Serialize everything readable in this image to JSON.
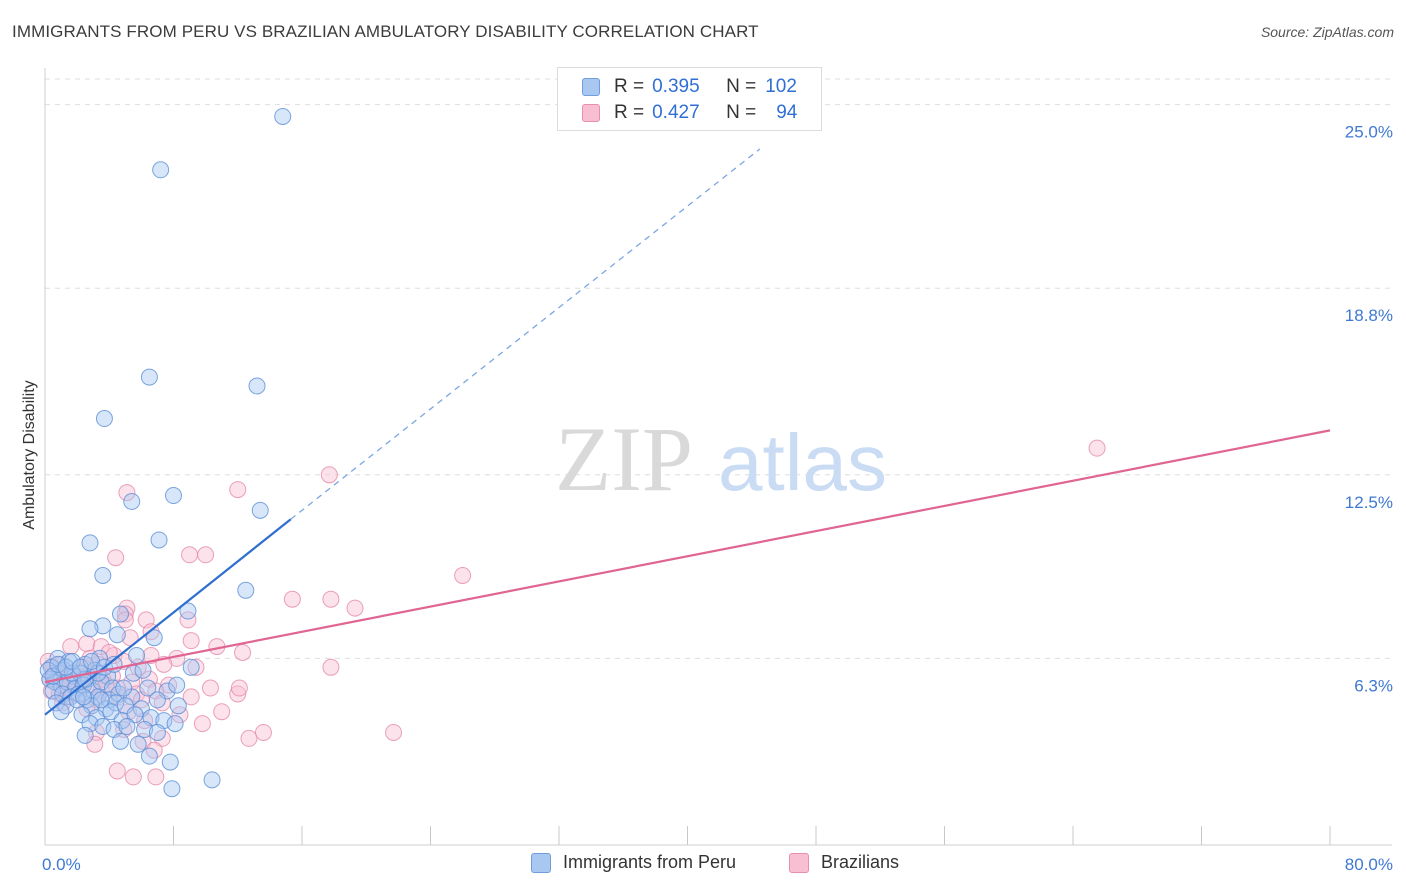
{
  "title": "IMMIGRANTS FROM PERU VS BRAZILIAN AMBULATORY DISABILITY CORRELATION CHART",
  "source": "Source: ZipAtlas.com",
  "watermark": {
    "zip": "ZIP",
    "atlas": "atlas"
  },
  "legend": {
    "r_label": "R =",
    "n_label": "N =",
    "rows": [
      {
        "name": "Immigrants from Peru",
        "r": "0.395",
        "n": "102"
      },
      {
        "name": "Brazilians",
        "r": "0.427",
        "n": "94"
      }
    ]
  },
  "chart_data": {
    "type": "scatter",
    "title": "IMMIGRANTS FROM PERU VS BRAZILIAN AMBULATORY DISABILITY CORRELATION CHART",
    "xlabel": "",
    "ylabel": "Ambulatory Disability",
    "xlim": [
      0,
      80
    ],
    "ylim": [
      0,
      26
    ],
    "x_tick_labels": [
      {
        "value": 0,
        "label": "0.0%"
      },
      {
        "value": 80,
        "label": "80.0%"
      }
    ],
    "x_minor_ticks": [
      8,
      16,
      24,
      32,
      40,
      48,
      56,
      64,
      72,
      80
    ],
    "y_ticks": [
      {
        "value": 6.3,
        "label": "6.3%"
      },
      {
        "value": 12.5,
        "label": "12.5%"
      },
      {
        "value": 18.8,
        "label": "18.8%"
      },
      {
        "value": 25.0,
        "label": "25.0%"
      }
    ],
    "grid": true,
    "colors": {
      "blue_fill": "#a9c8f1",
      "blue_edge": "#5b8fd6",
      "blue_line": "#2e6fd0",
      "pink_fill": "#f8bfd2",
      "pink_edge": "#e58aab",
      "pink_line": "#e06592",
      "tick_label": "#3f79d3"
    },
    "series": [
      {
        "name": "Immigrants from Peru",
        "trend": {
          "x0": 0,
          "y0": 4.4,
          "x1": 15.3,
          "y1": 11.0,
          "dash_to_x": 44.5,
          "dash_to_y": 23.5
        },
        "points": [
          [
            14.8,
            24.6
          ],
          [
            7.2,
            22.8
          ],
          [
            6.5,
            15.8
          ],
          [
            13.2,
            15.5
          ],
          [
            3.7,
            14.4
          ],
          [
            5.4,
            11.6
          ],
          [
            8.0,
            11.8
          ],
          [
            13.4,
            11.3
          ],
          [
            2.8,
            10.2
          ],
          [
            7.1,
            10.3
          ],
          [
            3.6,
            9.1
          ],
          [
            12.5,
            8.6
          ],
          [
            8.9,
            7.9
          ],
          [
            4.7,
            7.8
          ],
          [
            3.6,
            7.4
          ],
          [
            2.8,
            7.3
          ],
          [
            6.8,
            7.0
          ],
          [
            4.5,
            7.1
          ],
          [
            9.1,
            6.0
          ],
          [
            5.7,
            6.4
          ],
          [
            0.8,
            6.3
          ],
          [
            1.5,
            6.2
          ],
          [
            2.5,
            6.1
          ],
          [
            3.4,
            6.3
          ],
          [
            0.4,
            6.0
          ],
          [
            0.9,
            5.8
          ],
          [
            1.2,
            5.9
          ],
          [
            1.8,
            5.7
          ],
          [
            2.2,
            5.8
          ],
          [
            2.7,
            5.6
          ],
          [
            3.1,
            5.9
          ],
          [
            3.9,
            5.7
          ],
          [
            0.3,
            5.6
          ],
          [
            0.6,
            5.5
          ],
          [
            1.0,
            5.4
          ],
          [
            1.4,
            5.5
          ],
          [
            1.9,
            5.3
          ],
          [
            2.4,
            5.4
          ],
          [
            3.0,
            5.2
          ],
          [
            3.5,
            5.5
          ],
          [
            4.2,
            5.3
          ],
          [
            0.5,
            5.2
          ],
          [
            1.1,
            5.1
          ],
          [
            1.6,
            5.0
          ],
          [
            2.1,
            5.1
          ],
          [
            2.6,
            4.9
          ],
          [
            3.3,
            5.0
          ],
          [
            4.0,
            4.9
          ],
          [
            4.6,
            5.1
          ],
          [
            5.4,
            5.0
          ],
          [
            6.4,
            5.3
          ],
          [
            7.6,
            5.2
          ],
          [
            8.2,
            5.4
          ],
          [
            0.7,
            4.8
          ],
          [
            1.3,
            4.7
          ],
          [
            2.0,
            4.9
          ],
          [
            2.9,
            4.7
          ],
          [
            3.8,
            4.6
          ],
          [
            4.4,
            4.8
          ],
          [
            5.0,
            4.7
          ],
          [
            6.0,
            4.6
          ],
          [
            7.0,
            4.9
          ],
          [
            8.3,
            4.7
          ],
          [
            1.0,
            4.5
          ],
          [
            2.3,
            4.4
          ],
          [
            3.2,
            4.3
          ],
          [
            4.1,
            4.5
          ],
          [
            4.8,
            4.2
          ],
          [
            5.6,
            4.4
          ],
          [
            6.6,
            4.3
          ],
          [
            7.4,
            4.2
          ],
          [
            8.1,
            4.1
          ],
          [
            2.8,
            4.1
          ],
          [
            3.6,
            4.0
          ],
          [
            4.3,
            3.9
          ],
          [
            5.1,
            4.0
          ],
          [
            6.2,
            3.9
          ],
          [
            7.0,
            3.8
          ],
          [
            2.5,
            3.7
          ],
          [
            4.7,
            3.5
          ],
          [
            5.8,
            3.4
          ],
          [
            6.5,
            3.0
          ],
          [
            7.8,
            2.8
          ],
          [
            10.4,
            2.2
          ],
          [
            7.9,
            1.9
          ],
          [
            1.7,
            5.8
          ],
          [
            2.5,
            5.6
          ],
          [
            3.3,
            5.8
          ],
          [
            0.2,
            5.9
          ],
          [
            0.5,
            5.7
          ],
          [
            0.8,
            6.1
          ],
          [
            1.3,
            6.0
          ],
          [
            1.7,
            6.2
          ],
          [
            2.2,
            6.0
          ],
          [
            2.9,
            6.2
          ],
          [
            3.7,
            6.0
          ],
          [
            4.3,
            6.1
          ],
          [
            5.5,
            5.8
          ],
          [
            6.1,
            5.9
          ],
          [
            2.4,
            5.0
          ],
          [
            3.5,
            4.9
          ],
          [
            4.9,
            5.3
          ]
        ]
      },
      {
        "name": "Brazilians",
        "trend": {
          "x0": 0,
          "y0": 5.5,
          "x1": 80,
          "y1": 14.0
        },
        "points": [
          [
            65.5,
            13.4
          ],
          [
            17.7,
            12.5
          ],
          [
            12.0,
            12.0
          ],
          [
            5.1,
            11.9
          ],
          [
            9.0,
            9.8
          ],
          [
            10.0,
            9.8
          ],
          [
            4.4,
            9.7
          ],
          [
            26.0,
            9.1
          ],
          [
            15.4,
            8.3
          ],
          [
            17.8,
            8.3
          ],
          [
            19.3,
            8.0
          ],
          [
            5.1,
            8.0
          ],
          [
            5.0,
            7.8
          ],
          [
            5.0,
            7.6
          ],
          [
            6.3,
            7.6
          ],
          [
            8.9,
            7.6
          ],
          [
            6.6,
            7.2
          ],
          [
            5.3,
            7.0
          ],
          [
            9.1,
            6.9
          ],
          [
            10.7,
            6.7
          ],
          [
            12.3,
            6.5
          ],
          [
            4.3,
            6.4
          ],
          [
            6.6,
            6.4
          ],
          [
            8.2,
            6.3
          ],
          [
            2.6,
            6.8
          ],
          [
            3.5,
            6.7
          ],
          [
            4.0,
            6.5
          ],
          [
            1.6,
            6.7
          ],
          [
            2.8,
            6.3
          ],
          [
            3.3,
            6.1
          ],
          [
            4.9,
            6.2
          ],
          [
            5.8,
            6.0
          ],
          [
            7.4,
            6.1
          ],
          [
            9.4,
            6.0
          ],
          [
            17.8,
            6.0
          ],
          [
            0.5,
            6.0
          ],
          [
            1.0,
            5.9
          ],
          [
            1.5,
            5.8
          ],
          [
            2.0,
            5.9
          ],
          [
            2.5,
            5.7
          ],
          [
            3.0,
            5.8
          ],
          [
            3.6,
            5.6
          ],
          [
            4.2,
            5.7
          ],
          [
            5.4,
            5.5
          ],
          [
            6.5,
            5.6
          ],
          [
            7.7,
            5.4
          ],
          [
            0.3,
            5.6
          ],
          [
            0.7,
            5.5
          ],
          [
            1.2,
            5.4
          ],
          [
            1.8,
            5.5
          ],
          [
            2.3,
            5.3
          ],
          [
            2.9,
            5.4
          ],
          [
            3.5,
            5.2
          ],
          [
            4.5,
            5.3
          ],
          [
            5.7,
            5.1
          ],
          [
            6.9,
            5.2
          ],
          [
            10.3,
            5.3
          ],
          [
            12.0,
            5.1
          ],
          [
            12.1,
            5.3
          ],
          [
            0.4,
            5.2
          ],
          [
            0.9,
            5.1
          ],
          [
            1.4,
            5.0
          ],
          [
            2.1,
            5.1
          ],
          [
            3.2,
            4.9
          ],
          [
            4.6,
            5.0
          ],
          [
            6.0,
            4.9
          ],
          [
            7.3,
            4.8
          ],
          [
            9.1,
            5.0
          ],
          [
            1.1,
            4.8
          ],
          [
            2.6,
            4.6
          ],
          [
            5.2,
            4.5
          ],
          [
            8.4,
            4.4
          ],
          [
            11.0,
            4.5
          ],
          [
            6.2,
            4.2
          ],
          [
            9.8,
            4.1
          ],
          [
            3.2,
            3.8
          ],
          [
            4.9,
            3.9
          ],
          [
            13.6,
            3.8
          ],
          [
            21.7,
            3.8
          ],
          [
            12.7,
            3.6
          ],
          [
            3.1,
            3.4
          ],
          [
            6.1,
            3.5
          ],
          [
            7.3,
            3.6
          ],
          [
            6.8,
            3.2
          ],
          [
            4.5,
            2.5
          ],
          [
            6.9,
            2.3
          ],
          [
            5.5,
            2.3
          ],
          [
            0.2,
            6.2
          ],
          [
            0.6,
            5.8
          ],
          [
            1.0,
            6.1
          ],
          [
            1.3,
            5.6
          ],
          [
            1.7,
            5.2
          ],
          [
            2.4,
            6.0
          ],
          [
            3.8,
            5.4
          ]
        ]
      }
    ]
  }
}
